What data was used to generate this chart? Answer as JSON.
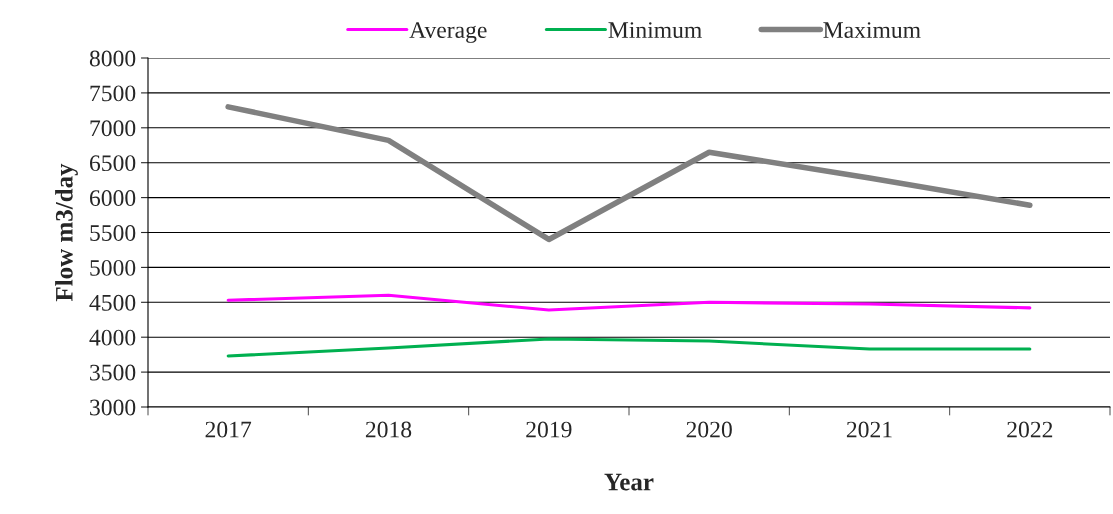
{
  "chart_data": {
    "type": "line",
    "xlabel": "Year",
    "ylabel": "Flow m3/day",
    "categories": [
      "2017",
      "2018",
      "2019",
      "2020",
      "2021",
      "2022"
    ],
    "series": [
      {
        "name": "Average",
        "color": "#ff00ff",
        "values": [
          4530,
          4600,
          4390,
          4500,
          4475,
          4420
        ]
      },
      {
        "name": "Minimum",
        "color": "#00b050",
        "values": [
          3730,
          3845,
          3975,
          3945,
          3830,
          3830
        ]
      },
      {
        "name": "Maximum",
        "color": "#808080",
        "values": [
          7300,
          6820,
          5400,
          6650,
          6280,
          5890
        ]
      }
    ],
    "ylim": [
      3000,
      8000
    ],
    "yticks": [
      3000,
      3500,
      4000,
      4500,
      5000,
      5500,
      6000,
      6500,
      7000,
      7500,
      8000
    ],
    "grid": "y",
    "legend": "top",
    "marker": "none",
    "line_style": "solid"
  }
}
